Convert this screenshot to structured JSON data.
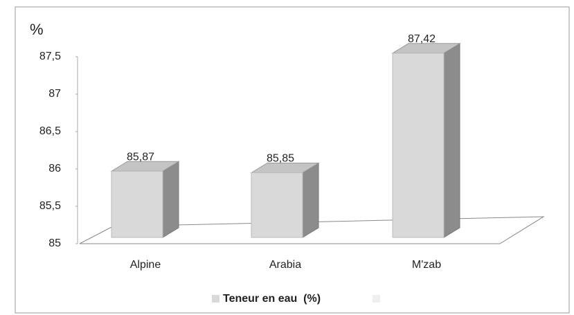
{
  "chart_data": {
    "type": "bar3d",
    "y_label": "%",
    "categories": [
      "Alpine",
      "Arabia",
      "M'zab"
    ],
    "series": [
      {
        "name": "Teneur en eau  (%)",
        "color": "#d9d9d9",
        "values": [
          85.87,
          85.85,
          87.42
        ],
        "value_labels": [
          "85,87",
          "85,85",
          "87,42"
        ]
      }
    ],
    "ylim": [
      85,
      87.5
    ],
    "yticks": [
      85,
      {
        "value": 85.5,
        "label": "85,5"
      },
      86,
      {
        "value": 86.5,
        "label": "86,5"
      },
      87,
      {
        "value": 87.5,
        "label": "87,5"
      }
    ]
  }
}
